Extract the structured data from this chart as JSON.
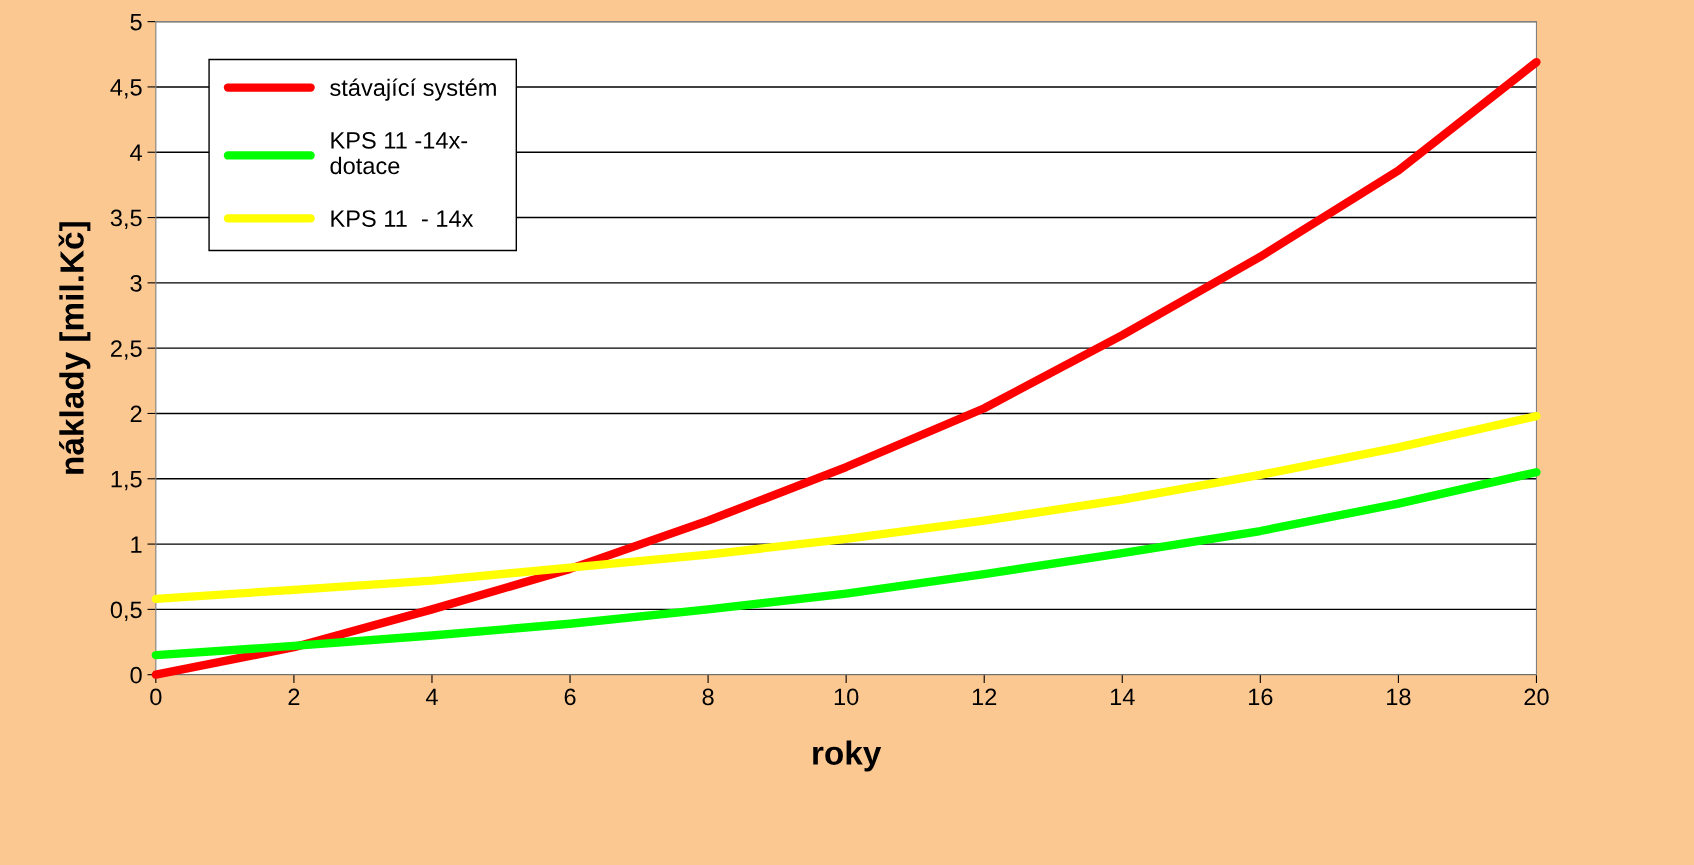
{
  "chart_data": {
    "type": "line",
    "xlabel": "roky",
    "ylabel": "náklady [mil.Kč]",
    "x": [
      0,
      2,
      4,
      6,
      8,
      10,
      12,
      14,
      16,
      18,
      20
    ],
    "series": [
      {
        "name": "stávající systém",
        "color": "#ff0000",
        "values": [
          0.0,
          0.21,
          0.5,
          0.81,
          1.18,
          1.59,
          2.04,
          2.6,
          3.2,
          3.86,
          4.69
        ]
      },
      {
        "name": "KPS 11 -14x-\ndotace",
        "color": "#00ff00",
        "values": [
          0.15,
          0.22,
          0.3,
          0.39,
          0.5,
          0.62,
          0.77,
          0.93,
          1.1,
          1.31,
          1.55
        ]
      },
      {
        "name": "KPS 11  - 14x",
        "color": "#ffff00",
        "values": [
          0.58,
          0.65,
          0.72,
          0.82,
          0.92,
          1.04,
          1.18,
          1.34,
          1.53,
          1.74,
          1.98
        ]
      }
    ],
    "xlim": [
      0,
      20
    ],
    "xticks": [
      0,
      2,
      4,
      6,
      8,
      10,
      12,
      14,
      16,
      18,
      20
    ],
    "ylim": [
      0,
      5
    ],
    "yticks": [
      0,
      {
        "value": 0.5,
        "label": "0,5"
      },
      1,
      {
        "value": 1.5,
        "label": "1,5"
      },
      2,
      {
        "value": 2.5,
        "label": "2,5"
      },
      3,
      {
        "value": 3.5,
        "label": "3,5"
      },
      4,
      {
        "value": 4.5,
        "label": "4,5"
      },
      5
    ],
    "grid": "y",
    "legend": "top left",
    "marker": "none",
    "line_style": "solid"
  }
}
